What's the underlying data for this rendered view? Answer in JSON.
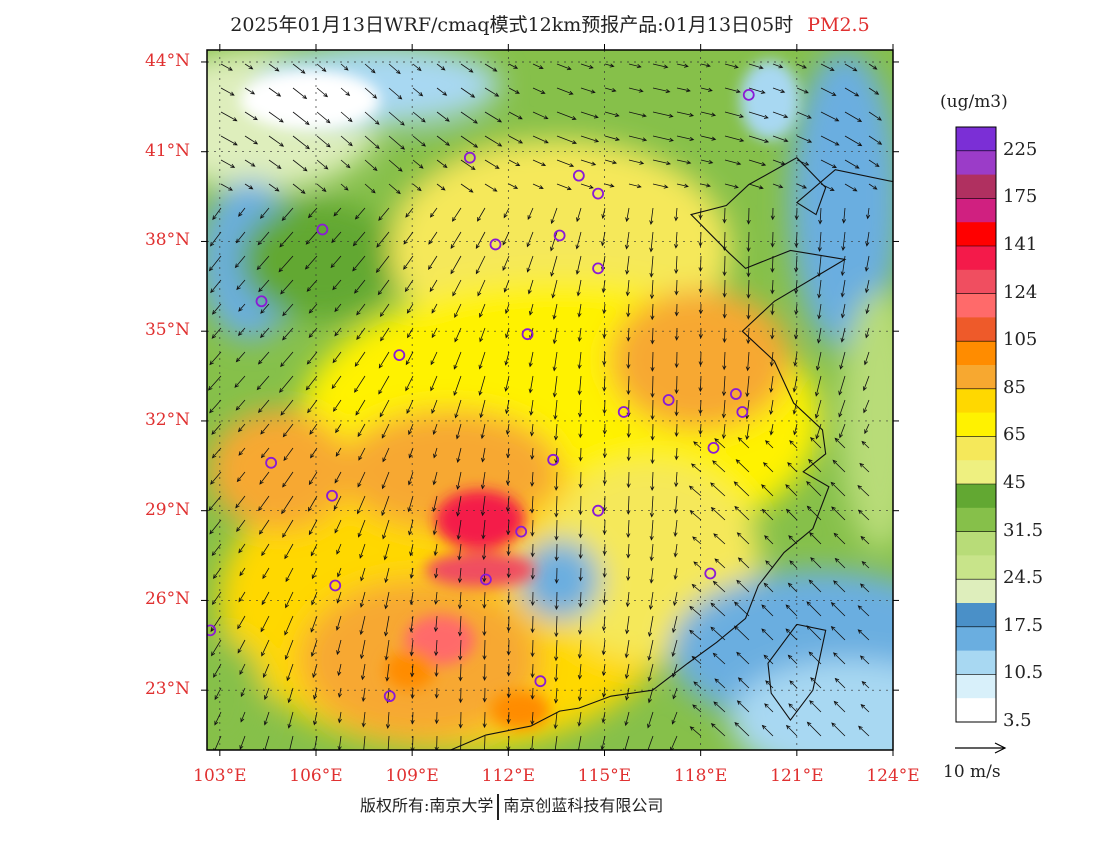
{
  "title": {
    "text": "2025年01月13日WRF/cmaq模式12km预报产品:01月13日05时",
    "product": "PM2.5"
  },
  "axes": {
    "lat_labels": [
      "44°N",
      "41°N",
      "38°N",
      "35°N",
      "32°N",
      "29°N",
      "26°N",
      "23°N"
    ],
    "lon_labels": [
      "103°E",
      "106°E",
      "109°E",
      "112°E",
      "115°E",
      "118°E",
      "121°E",
      "124°E"
    ]
  },
  "colorbar": {
    "units": "(ug/m3)",
    "labels": [
      "225",
      "175",
      "141",
      "124",
      "105",
      "85",
      "65",
      "45",
      "31.5",
      "24.5",
      "17.5",
      "10.5",
      "3.5"
    ],
    "colors": [
      "#7b2fd6",
      "#9b3cc8",
      "#b03060",
      "#d02080",
      "#ff0000",
      "#f41a4a",
      "#f04e60",
      "#ff6a6a",
      "#ee5a2a",
      "#ff8c00",
      "#f7a830",
      "#ffd800",
      "#fff200",
      "#f5e85a",
      "#eef080",
      "#62a832",
      "#86c04a",
      "#b8dc78",
      "#c8e48a",
      "#deeebc",
      "#4a90c8",
      "#6aaee0",
      "#a8d8f2",
      "#d8f0fa",
      "#ffffff"
    ]
  },
  "wind_vector": {
    "label": "10 m/s"
  },
  "copyright": {
    "left": "版权所有:南京大学",
    "right": "南京创蓝科技有限公司"
  },
  "map_data": {
    "extent": {
      "lon_min": 102.6,
      "lon_max": 124.0,
      "lat_min": 21.0,
      "lat_max": 44.4
    },
    "gridlines": "dotted",
    "stations": [
      {
        "lon": 119.5,
        "lat": 42.9
      },
      {
        "lon": 110.8,
        "lat": 40.8
      },
      {
        "lon": 114.2,
        "lat": 40.2
      },
      {
        "lon": 114.8,
        "lat": 39.6
      },
      {
        "lon": 106.2,
        "lat": 38.4
      },
      {
        "lon": 111.6,
        "lat": 37.9
      },
      {
        "lon": 113.6,
        "lat": 38.2
      },
      {
        "lon": 114.8,
        "lat": 37.1
      },
      {
        "lon": 104.3,
        "lat": 36.0
      },
      {
        "lon": 112.6,
        "lat": 34.9
      },
      {
        "lon": 108.6,
        "lat": 34.2
      },
      {
        "lon": 119.1,
        "lat": 32.9
      },
      {
        "lon": 117.0,
        "lat": 32.7
      },
      {
        "lon": 115.6,
        "lat": 32.3
      },
      {
        "lon": 119.3,
        "lat": 32.3
      },
      {
        "lon": 118.4,
        "lat": 31.1
      },
      {
        "lon": 104.6,
        "lat": 30.6
      },
      {
        "lon": 113.4,
        "lat": 30.7
      },
      {
        "lon": 106.5,
        "lat": 29.5
      },
      {
        "lon": 114.8,
        "lat": 29.0
      },
      {
        "lon": 112.4,
        "lat": 28.3
      },
      {
        "lon": 111.3,
        "lat": 26.7
      },
      {
        "lon": 106.6,
        "lat": 26.5
      },
      {
        "lon": 118.3,
        "lat": 26.9
      },
      {
        "lon": 102.7,
        "lat": 25.0
      },
      {
        "lon": 108.3,
        "lat": 22.8
      },
      {
        "lon": 113.0,
        "lat": 23.3
      }
    ]
  }
}
